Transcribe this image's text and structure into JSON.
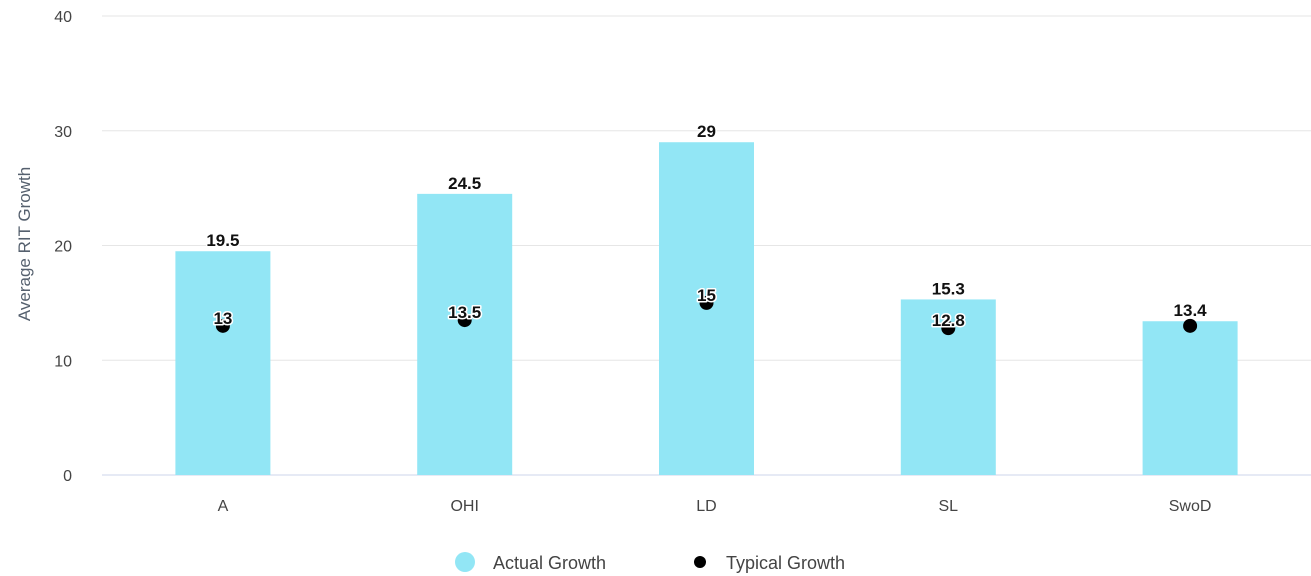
{
  "chart_data": {
    "type": "bar",
    "title": "",
    "xlabel": "",
    "ylabel": "Average RIT Growth",
    "ylim": [
      0,
      40
    ],
    "yticks": [
      0,
      10,
      20,
      30,
      40
    ],
    "grid": true,
    "legend_position": "bottom-center",
    "categories": [
      "A",
      "OHI",
      "LD",
      "SL",
      "SwoD"
    ],
    "series": [
      {
        "name": "Actual Growth",
        "kind": "bar",
        "color": "#92e6f5",
        "values": [
          19.5,
          24.5,
          29,
          15.3,
          13.4
        ]
      },
      {
        "name": "Typical Growth",
        "kind": "scatter",
        "color": "#000000",
        "values": [
          13,
          13.5,
          15,
          12.8,
          13
        ]
      }
    ],
    "data_labels": {
      "Actual Growth": [
        "19.5",
        "24.5",
        "29",
        "15.3",
        "13.4"
      ],
      "Typical Growth": [
        "13",
        "13.5",
        "15",
        "12.8",
        null
      ]
    }
  }
}
